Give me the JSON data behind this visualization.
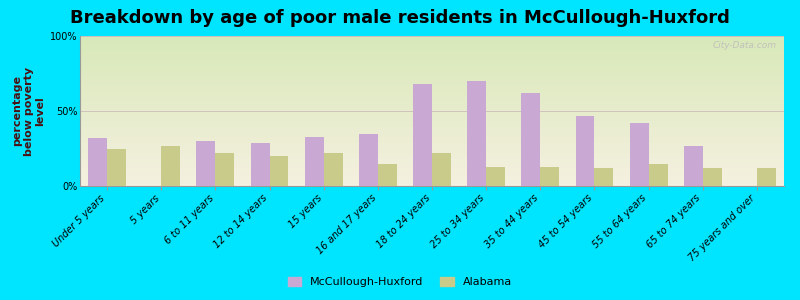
{
  "title": "Breakdown by age of poor male residents in McCullough-Huxford",
  "ylabel": "percentage\nbelow poverty\nlevel",
  "categories": [
    "Under 5 years",
    "5 years",
    "6 to 11 years",
    "12 to 14 years",
    "15 years",
    "16 and 17 years",
    "18 to 24 years",
    "25 to 34 years",
    "35 to 44 years",
    "45 to 54 years",
    "55 to 64 years",
    "65 to 74 years",
    "75 years and over"
  ],
  "mccullough_values": [
    32,
    0,
    30,
    29,
    33,
    35,
    68,
    70,
    62,
    47,
    42,
    27,
    0
  ],
  "alabama_values": [
    25,
    27,
    22,
    20,
    22,
    15,
    22,
    13,
    13,
    12,
    15,
    12,
    12
  ],
  "bar_color_mc": "#c9a8d4",
  "bar_color_al": "#c8cb8a",
  "bg_outer": "#00e5ff",
  "bg_gradient_top": "#d8e8b8",
  "bg_gradient_bottom": "#f5f0e0",
  "ylim": [
    0,
    100
  ],
  "yticks": [
    0,
    50,
    100
  ],
  "ytick_labels": [
    "0%",
    "50%",
    "100%"
  ],
  "legend_mc": "McCullough-Huxford",
  "legend_al": "Alabama",
  "bar_width": 0.35,
  "title_fontsize": 13,
  "axis_label_fontsize": 8,
  "tick_fontsize": 7,
  "watermark": "City-Data.com"
}
